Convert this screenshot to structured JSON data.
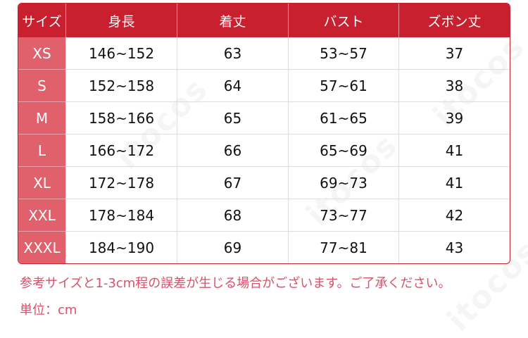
{
  "watermark": "itocos",
  "table": {
    "headers": [
      "サイズ",
      "身長",
      "着丈",
      "バスト",
      "ズボン丈"
    ],
    "rows": [
      [
        "XS",
        "146~152",
        "63",
        "53~57",
        "37"
      ],
      [
        "S",
        "152~158",
        "64",
        "57~61",
        "38"
      ],
      [
        "M",
        "158~166",
        "65",
        "61~65",
        "39"
      ],
      [
        "L",
        "166~172",
        "66",
        "65~69",
        "41"
      ],
      [
        "XL",
        "172~178",
        "67",
        "69~73",
        "41"
      ],
      [
        "XXL",
        "178~184",
        "68",
        "73~77",
        "42"
      ],
      [
        "XXXL",
        "184~190",
        "69",
        "77~81",
        "43"
      ]
    ]
  },
  "notes": {
    "tolerance": "参考サイズと1-3cm程の誤差が生じる場合がございます。ご了承ください。",
    "unit": "単位：cm"
  },
  "colors": {
    "header": "#c8202f",
    "size_column": "#e0606c",
    "note_text": "#d9506a"
  }
}
